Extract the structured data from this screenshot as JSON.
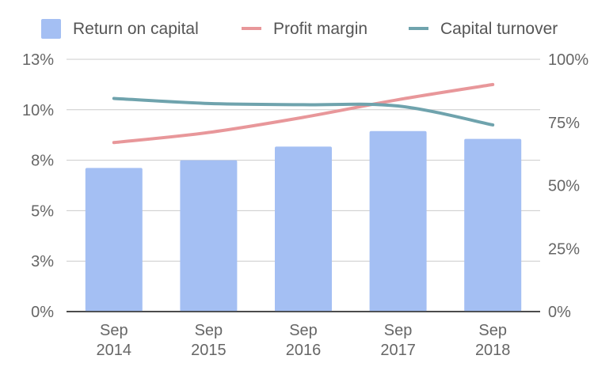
{
  "chart_data": {
    "type": "bar+line",
    "categories": [
      [
        "Sep",
        "2014"
      ],
      [
        "Sep",
        "2015"
      ],
      [
        "Sep",
        "2016"
      ],
      [
        "Sep",
        "2017"
      ],
      [
        "Sep",
        "2018"
      ]
    ],
    "bars": {
      "name": "Return on capital",
      "values": [
        7.4,
        7.8,
        8.5,
        9.3,
        8.9
      ],
      "color": "#a4bff3",
      "axis": "left"
    },
    "lines": [
      {
        "name": "Profit margin",
        "values": [
          67,
          71,
          77,
          84,
          90
        ],
        "color": "#e8979a",
        "axis": "right"
      },
      {
        "name": "Capital turnover",
        "values": [
          84.5,
          82.5,
          82,
          81.5,
          74
        ],
        "color": "#6fa3ad",
        "axis": "right"
      }
    ],
    "left_axis": {
      "ticks": [
        0,
        2.6,
        5.2,
        7.8,
        10.4,
        13
      ],
      "labels": [
        "0%",
        "3%",
        "5%",
        "8%",
        "10%",
        "13%"
      ],
      "range": [
        0,
        13
      ]
    },
    "right_axis": {
      "ticks": [
        0,
        25,
        50,
        75,
        100
      ],
      "labels": [
        "0%",
        "25%",
        "50%",
        "75%",
        "100%"
      ],
      "range": [
        0,
        100
      ]
    },
    "legend": {
      "placement": "top"
    },
    "grid": true
  }
}
